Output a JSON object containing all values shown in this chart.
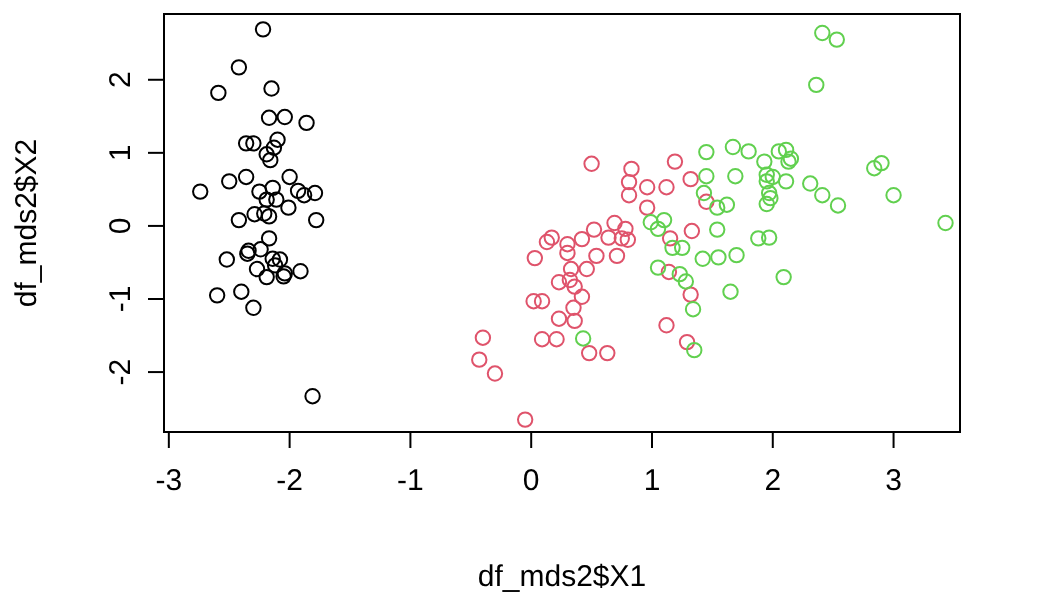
{
  "chart_data": {
    "type": "scatter",
    "xlabel": "df_mds2$X1",
    "ylabel": "df_mds2$X2",
    "xlim": [
      -3.04,
      3.55
    ],
    "ylim": [
      -2.82,
      2.9
    ],
    "xticks": [
      -3,
      -2,
      -1,
      0,
      1,
      2,
      3
    ],
    "yticks": [
      -2,
      -1,
      0,
      1,
      2
    ],
    "grid": false,
    "marker": "circle",
    "series": [
      {
        "color": "#000000",
        "x": [
          -2.22,
          -2.42,
          -2.59,
          -2.15,
          -2.17,
          -2.04,
          -1.86,
          -2.36,
          -2.3,
          -2.1,
          -2.13,
          -2.19,
          -2.16,
          -2.5,
          -2.36,
          -2.0,
          -2.74,
          -2.25,
          -2.14,
          -1.93,
          -1.88,
          -1.79,
          -2.19,
          -2.11,
          -2.01,
          -2.29,
          -2.21,
          -2.17,
          -2.42,
          -1.78,
          -2.17,
          -2.24,
          -2.34,
          -2.35,
          -2.52,
          -2.14,
          -2.08,
          -2.12,
          -2.27,
          -2.04,
          -2.05,
          -2.19,
          -1.91,
          -2.6,
          -2.4,
          -2.3,
          -1.81
        ],
        "values": [
          2.69,
          2.17,
          1.82,
          1.88,
          1.48,
          1.49,
          1.41,
          1.13,
          1.13,
          1.18,
          1.07,
          0.98,
          0.9,
          0.61,
          0.67,
          0.67,
          0.47,
          0.47,
          0.52,
          0.48,
          0.42,
          0.45,
          0.36,
          0.36,
          0.25,
          0.16,
          0.17,
          0.13,
          0.08,
          0.08,
          -0.17,
          -0.32,
          -0.34,
          -0.38,
          -0.46,
          -0.45,
          -0.46,
          -0.54,
          -0.59,
          -0.65,
          -0.69,
          -0.7,
          -0.62,
          -0.95,
          -0.9,
          -1.12,
          -2.33
        ]
      },
      {
        "color": "#df536b",
        "x": [
          0.5,
          0.83,
          0.81,
          0.96,
          1.12,
          1.19,
          1.32,
          0.81,
          1.45,
          0.96,
          0.69,
          0.52,
          0.78,
          1.33,
          0.17,
          0.13,
          0.3,
          0.42,
          0.64,
          0.75,
          0.8,
          1.15,
          0.3,
          0.03,
          0.54,
          0.71,
          0.46,
          0.33,
          1.14,
          0.23,
          0.32,
          0.36,
          0.42,
          1.32,
          0.02,
          0.09,
          0.35,
          0.23,
          0.36,
          1.12,
          -0.4,
          0.09,
          0.21,
          1.29,
          -0.43,
          0.48,
          0.63,
          -0.3,
          -0.05
        ],
        "values": [
          0.85,
          0.78,
          0.6,
          0.53,
          0.53,
          0.88,
          0.64,
          0.42,
          0.33,
          0.25,
          0.04,
          -0.05,
          -0.04,
          -0.07,
          -0.16,
          -0.22,
          -0.25,
          -0.18,
          -0.16,
          -0.17,
          -0.19,
          -0.17,
          -0.37,
          -0.44,
          -0.41,
          -0.41,
          -0.59,
          -0.59,
          -0.63,
          -0.77,
          -0.74,
          -0.83,
          -0.97,
          -0.94,
          -1.03,
          -1.03,
          -1.12,
          -1.27,
          -1.3,
          -1.36,
          -1.53,
          -1.55,
          -1.55,
          -1.59,
          -1.83,
          -1.74,
          -1.74,
          -2.02,
          -2.65
        ]
      },
      {
        "color": "#61d04f",
        "x": [
          2.41,
          2.53,
          2.36,
          1.45,
          1.67,
          1.8,
          1.93,
          2.05,
          2.11,
          2.13,
          2.15,
          1.45,
          1.69,
          1.95,
          2.0,
          1.95,
          2.11,
          2.31,
          2.84,
          2.9,
          1.43,
          1.97,
          1.98,
          2.41,
          3.0,
          2.54,
          1.95,
          1.54,
          1.62,
          3.43,
          1.1,
          0.99,
          1.05,
          1.54,
          1.88,
          1.97,
          1.17,
          1.25,
          1.42,
          1.55,
          1.7,
          1.05,
          1.23,
          1.28,
          2.09,
          1.65,
          1.34,
          0.43,
          1.35
        ],
        "values": [
          2.64,
          2.55,
          1.93,
          1.01,
          1.08,
          1.02,
          0.88,
          1.02,
          1.04,
          0.88,
          0.92,
          0.68,
          0.68,
          0.7,
          0.67,
          0.61,
          0.61,
          0.58,
          0.79,
          0.86,
          0.45,
          0.45,
          0.38,
          0.42,
          0.42,
          0.28,
          0.3,
          0.25,
          0.29,
          0.04,
          0.08,
          0.05,
          -0.04,
          -0.05,
          -0.17,
          -0.16,
          -0.3,
          -0.3,
          -0.45,
          -0.43,
          -0.4,
          -0.57,
          -0.66,
          -0.76,
          -0.7,
          -0.9,
          -1.14,
          -1.54,
          -1.7
        ]
      }
    ]
  }
}
